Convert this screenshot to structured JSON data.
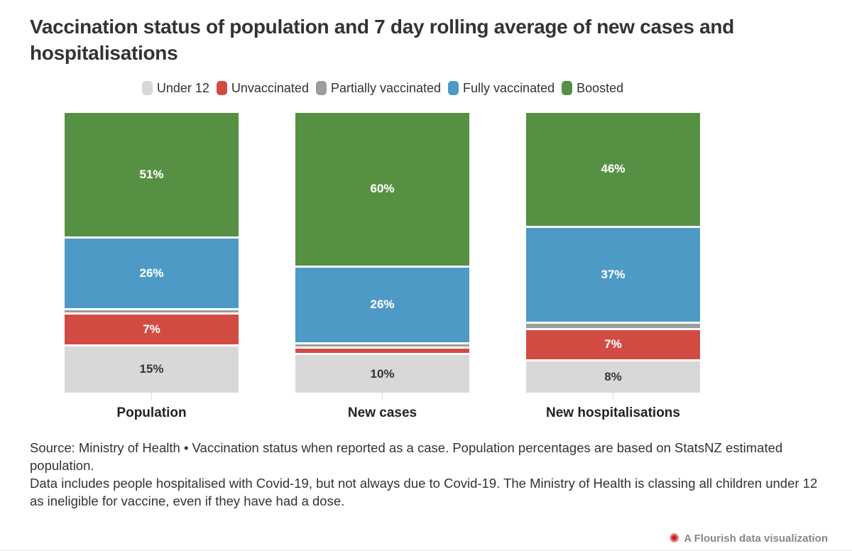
{
  "title": "Vaccination status of population and 7 day rolling average of new cases and hospitalisations",
  "legend": {
    "items": [
      {
        "label": "Under 12",
        "color": "#d8d8d8"
      },
      {
        "label": "Unvaccinated",
        "color": "#d24b43"
      },
      {
        "label": "Partially vaccinated",
        "color": "#9c9e9e"
      },
      {
        "label": "Fully vaccinated",
        "color": "#4d9ac6"
      },
      {
        "label": "Boosted",
        "color": "#569043"
      }
    ]
  },
  "chart_data": {
    "type": "bar",
    "stacked": true,
    "unit": "%",
    "title": "Vaccination status of population and 7 day rolling average of new cases and hospitalisations",
    "categories": [
      "Population",
      "New cases",
      "New hospitalisations"
    ],
    "series": [
      {
        "name": "Boosted",
        "color": "#569043",
        "text_color": "#ffffff",
        "values": [
          51,
          60,
          46
        ],
        "labels": [
          "51%",
          "60%",
          "46%"
        ]
      },
      {
        "name": "Fully vaccinated",
        "color": "#4d9ac6",
        "text_color": "#ffffff",
        "values": [
          26,
          26,
          37
        ],
        "labels": [
          "26%",
          "26%",
          "37%"
        ]
      },
      {
        "name": "Partially vaccinated",
        "color": "#9c9e9e",
        "text_color": "#ffffff",
        "values": [
          1,
          1,
          2
        ],
        "labels": [
          "",
          "",
          ""
        ]
      },
      {
        "name": "Unvaccinated",
        "color": "#d24b43",
        "text_color": "#ffffff",
        "values": [
          7,
          2,
          7
        ],
        "labels": [
          "7%",
          "",
          "7%"
        ]
      },
      {
        "name": "Under 12",
        "color": "#d8d8d8",
        "text_color": "#333333",
        "values": [
          15,
          10,
          8
        ],
        "labels": [
          "15%",
          "10%",
          "8%"
        ]
      }
    ],
    "stack_order_top_to_bottom": [
      "Boosted",
      "Fully vaccinated",
      "Partially vaccinated",
      "Unvaccinated",
      "Under 12"
    ],
    "ylim": [
      0,
      100
    ],
    "grid": false,
    "legend_position": "top"
  },
  "footer": {
    "line1": "Source: Ministry of Health • Vaccination status when reported as a case. Population percentages are based on StatsNZ estimated population.",
    "line2": "Data includes people hospitalised with Covid-19, but not always due to Covid-19. The Ministry of Health is classing all children under 12 as ineligible for vaccine, even if they have had a dose."
  },
  "credit": {
    "label": "A Flourish data visualization",
    "icon": "flourish-burst-icon",
    "icon_color": "#cf2020",
    "text_color": "#888888"
  }
}
